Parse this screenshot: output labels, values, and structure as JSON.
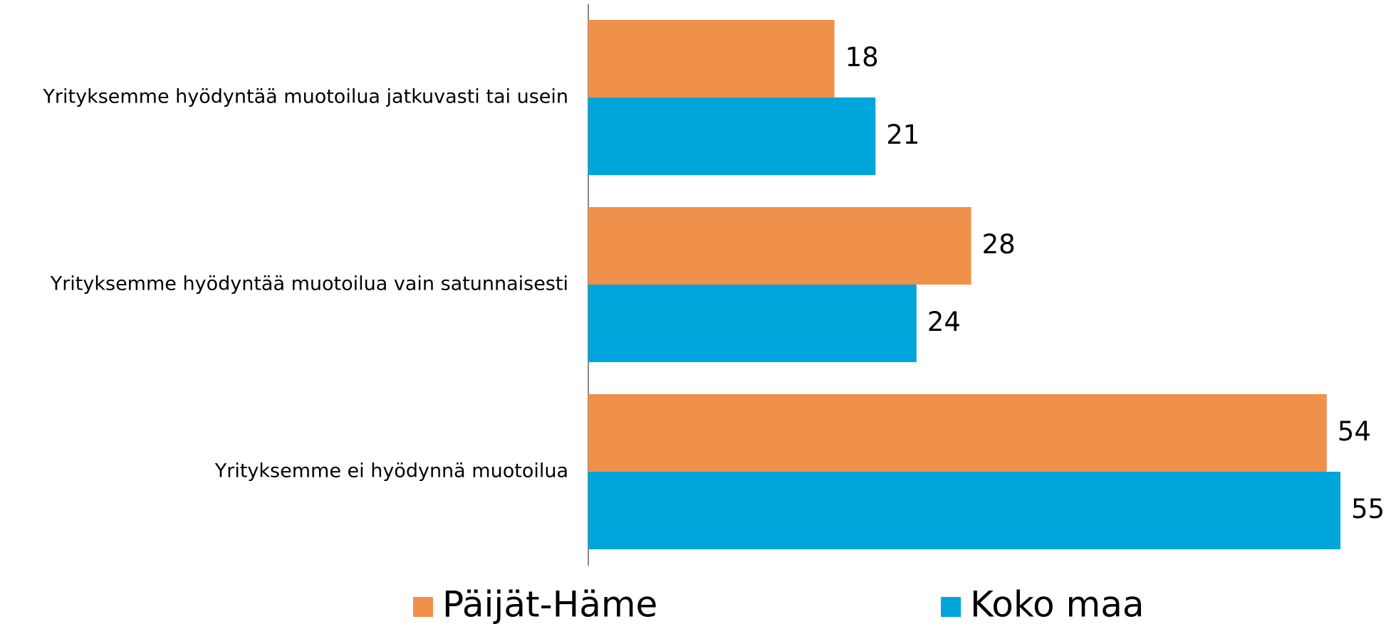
{
  "chart_data": {
    "type": "barh",
    "categories": [
      "Yrityksemme hyödyntää muotoilua jatkuvasti tai usein",
      "Yrityksemme hyödyntää muotoilua vain satunnaisesti",
      "Yrityksemme ei hyödynnä muotoilua"
    ],
    "series": [
      {
        "name": "Päijät-Häme",
        "color": "#f0914b",
        "values": [
          18,
          28,
          54
        ]
      },
      {
        "name": "Koko maa",
        "color": "#00a5db",
        "values": [
          21,
          24,
          55
        ]
      }
    ],
    "legend": "bottom"
  }
}
